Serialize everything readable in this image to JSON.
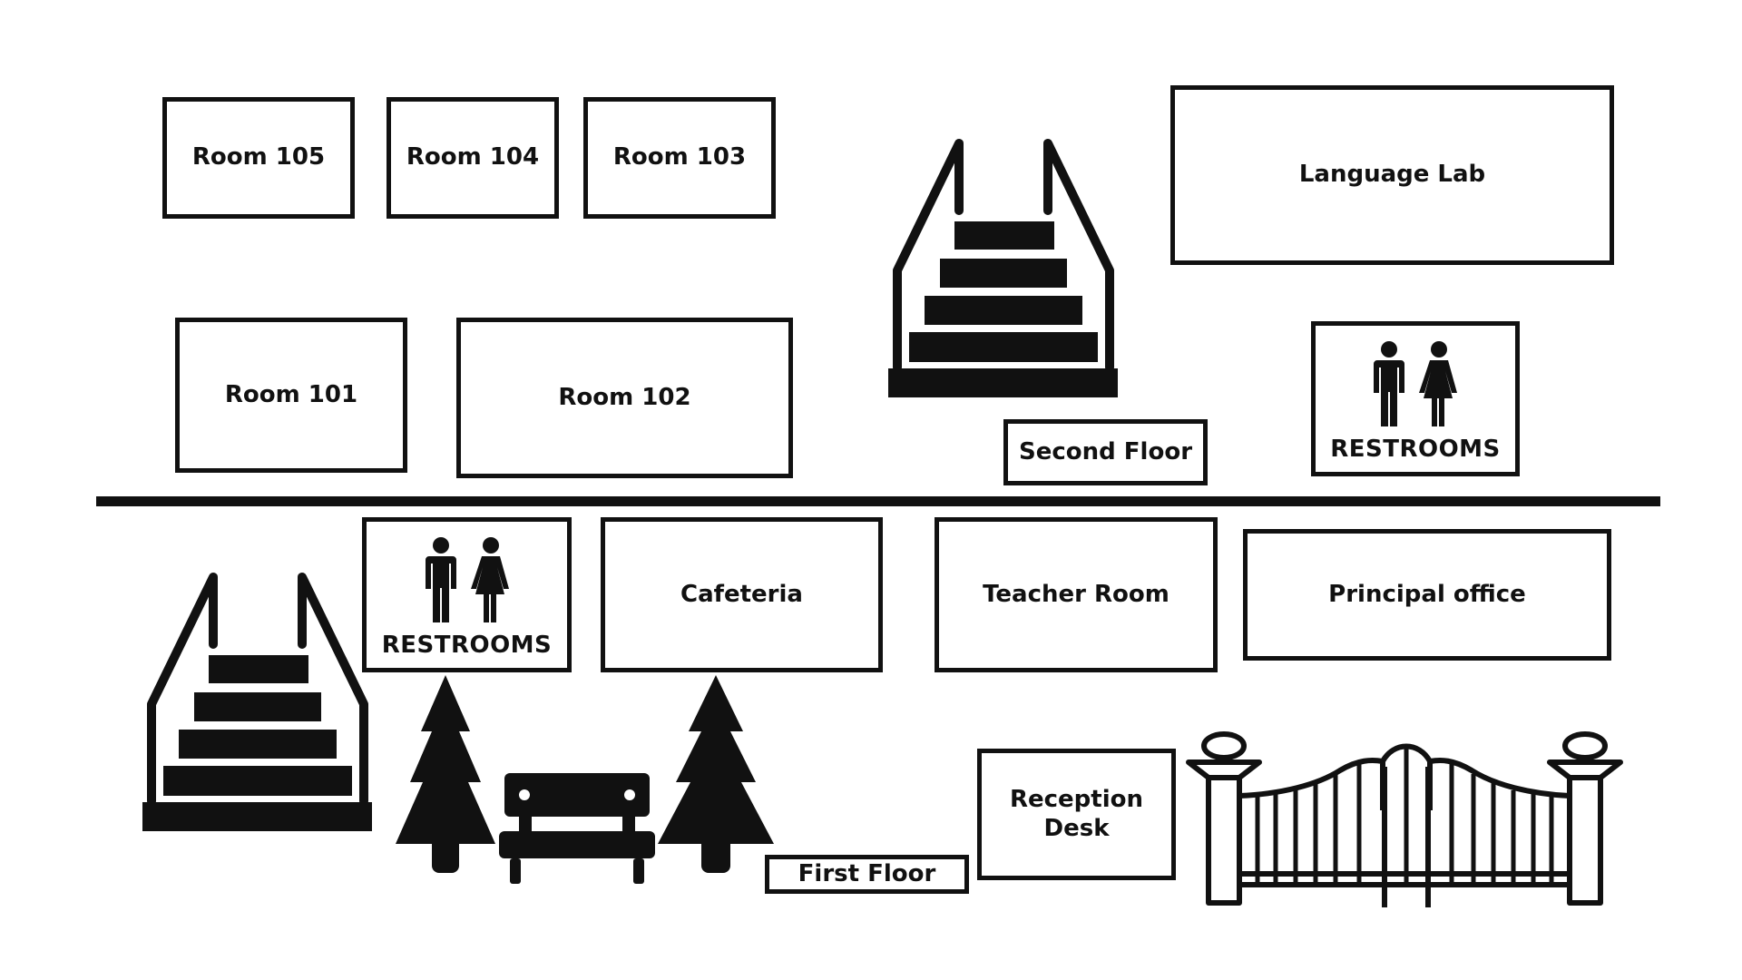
{
  "map": {
    "divider": "floor-divider",
    "second_floor": {
      "label": "Second Floor",
      "rooms": {
        "room105": "Room 105",
        "room104": "Room 104",
        "room103": "Room 103",
        "room101": "Room 101",
        "room102": "Room 102",
        "language_lab": "Language Lab",
        "restrooms": "RESTROOMS"
      }
    },
    "first_floor": {
      "label": "First Floor",
      "rooms": {
        "restrooms": "RESTROOMS",
        "cafeteria": "Cafeteria",
        "teacher_room": "Teacher Room",
        "principal_office": "Principal office",
        "reception_desk": "Reception Desk"
      }
    },
    "icons": [
      "stairs-icon",
      "restroom-people-icon",
      "tree-icon",
      "bench-icon",
      "gate-icon"
    ],
    "colors": {
      "ink": "#111111",
      "background": "#ffffff"
    }
  }
}
